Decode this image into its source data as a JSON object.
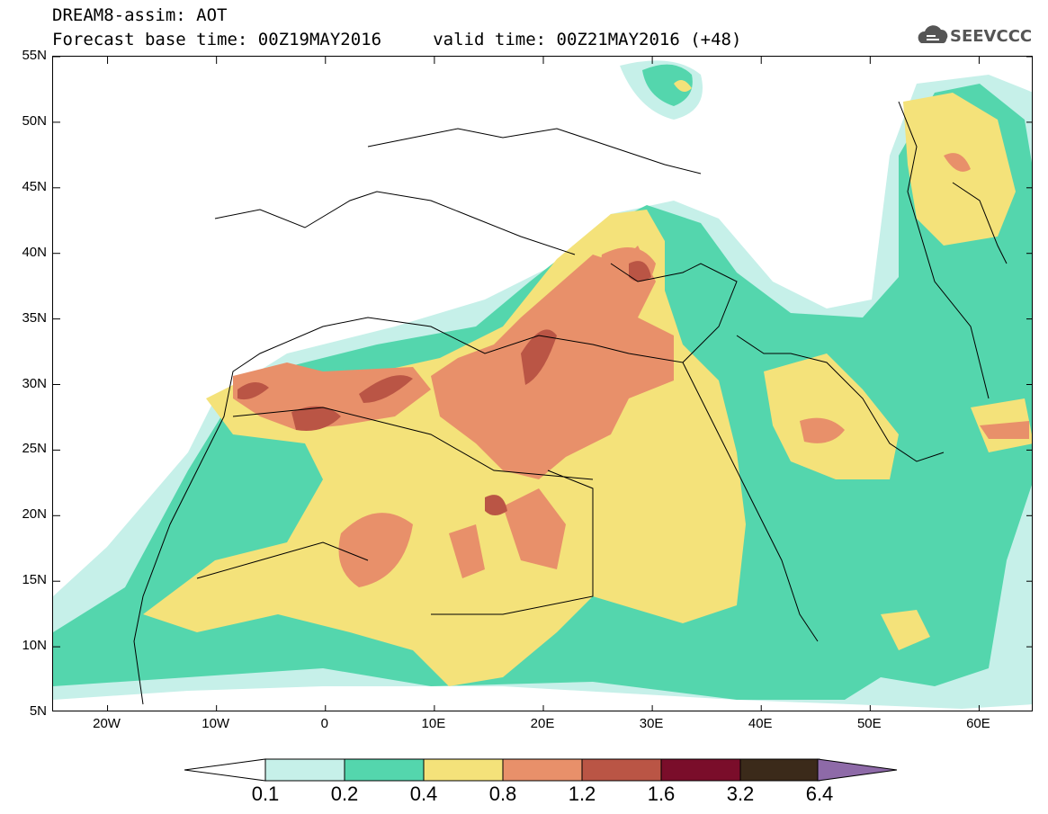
{
  "header": {
    "line1": "DREAM8-assim: AOT",
    "line2": "Forecast base time: 00Z19MAY2016     valid time: 00Z21MAY2016 (+48)",
    "logo_text": "SEEVCCC"
  },
  "map": {
    "lon_range": [
      -25,
      65
    ],
    "lat_range": [
      5,
      55
    ],
    "lat_labels": [
      "55N",
      "50N",
      "45N",
      "40N",
      "35N",
      "30N",
      "25N",
      "20N",
      "15N",
      "10N",
      "5N"
    ],
    "lat_values": [
      55,
      50,
      45,
      40,
      35,
      30,
      25,
      20,
      15,
      10,
      5
    ],
    "lon_labels": [
      "20W",
      "10W",
      "0",
      "10E",
      "20E",
      "30E",
      "40E",
      "50E",
      "60E"
    ],
    "lon_values": [
      -20,
      -10,
      0,
      10,
      20,
      30,
      40,
      50,
      60
    ]
  },
  "colorbar": {
    "levels": [
      "0.1",
      "0.2",
      "0.4",
      "0.8",
      "1.2",
      "1.6",
      "3.2",
      "6.4"
    ],
    "colors": [
      "#c6f0e9",
      "#54d6ad",
      "#f4e27a",
      "#e8906a",
      "#ba5545",
      "#7a0d2a",
      "#3b2a1a",
      "#8e6aa8"
    ],
    "low_color": "#ffffff",
    "high_color": "#8e6aa8"
  }
}
